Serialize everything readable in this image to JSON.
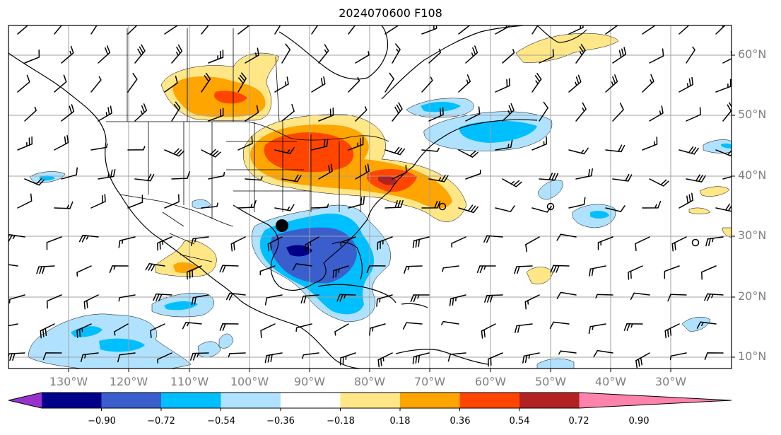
{
  "title": "2024070600 F108",
  "lat_labels": [
    "60°N",
    "50°N",
    "40°N",
    "30°N",
    "20°N",
    "10°N"
  ],
  "lon_labels": [
    "130°W",
    "120°W",
    "110°W",
    "100°W",
    "90°W",
    "80°W",
    "70°W",
    "60°W",
    "50°W",
    "40°W",
    "30°W"
  ],
  "colorbar": {
    "ticks": [
      "−0.90",
      "−0.72",
      "−0.54",
      "−0.36",
      "−0.18",
      "0.18",
      "0.36",
      "0.54",
      "0.72",
      "0.90"
    ],
    "colors": [
      "#9932cc",
      "#00008b",
      "#3a5fcd",
      "#00bfff",
      "#b0e2ff",
      "#ffffff",
      "#ffe788",
      "#ffa500",
      "#ff4500",
      "#b22222",
      "#ff82ab"
    ]
  },
  "marker": {
    "label": ""
  }
}
